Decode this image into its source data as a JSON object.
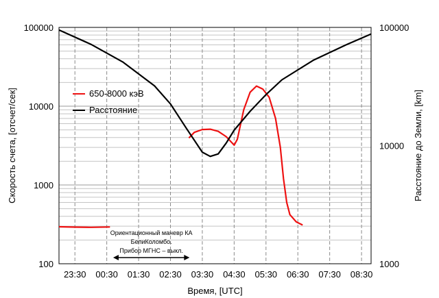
{
  "chart_data": {
    "type": "line",
    "xlabel": "Время, [UTC]",
    "ylabel_left": "Скорость счета, [отсчет/сек]",
    "ylabel_right": "Расстояние до Земли, [km]",
    "x_ticks": [
      "23:30",
      "00:30",
      "01:30",
      "02:30",
      "03:30",
      "04:30",
      "05:30",
      "06:30",
      "07:30",
      "08:30"
    ],
    "x_range_hours": [
      -0.5,
      9.3
    ],
    "y_left": {
      "scale": "log",
      "ylim": [
        100,
        100000
      ],
      "ticks": [
        "100",
        "1000",
        "10000",
        "100000"
      ]
    },
    "y_right": {
      "scale": "log",
      "ylim": [
        1000,
        100000
      ],
      "ticks": [
        "1000",
        "10000",
        "100000"
      ]
    },
    "grid": true,
    "legend_position": "upper-left",
    "series": [
      {
        "name": "650-8000 кэВ",
        "axis": "left",
        "color": "#ee1111",
        "segments": [
          {
            "x": [
              -0.5,
              0.0,
              0.5,
              1.1
            ],
            "y": [
              295,
              292,
              290,
              293
            ]
          },
          {
            "x": [
              3.58,
              3.75,
              4.0,
              4.25,
              4.5,
              4.75,
              5.0,
              5.1,
              5.3,
              5.5,
              5.7,
              5.9,
              6.1,
              6.3,
              6.45,
              6.55,
              6.65,
              6.75,
              6.95,
              7.15
            ],
            "y": [
              3950,
              4650,
              5050,
              5100,
              4800,
              4100,
              3200,
              3800,
              9000,
              15000,
              18000,
              16500,
              13000,
              7000,
              3000,
              1200,
              600,
              420,
              340,
              310
            ]
          }
        ]
      },
      {
        "name": "Расстояние",
        "axis": "right",
        "color": "#000000",
        "x": [
          -0.5,
          0.5,
          1.5,
          2.5,
          3.0,
          3.5,
          4.0,
          4.25,
          4.5,
          4.75,
          5.0,
          5.5,
          6.0,
          6.5,
          7.5,
          8.5,
          9.3
        ],
        "y": [
          95000,
          72000,
          51000,
          32000,
          22500,
          14000,
          8800,
          8100,
          8500,
          10500,
          13500,
          19500,
          27000,
          36000,
          53000,
          71000,
          88000
        ]
      }
    ],
    "annotation": {
      "lines": [
        "Ориентационный маневр КА",
        "БепиКоломбо.",
        "Прибор МГНС – выкл."
      ],
      "x_from": 1.2,
      "x_to": 3.6
    }
  }
}
